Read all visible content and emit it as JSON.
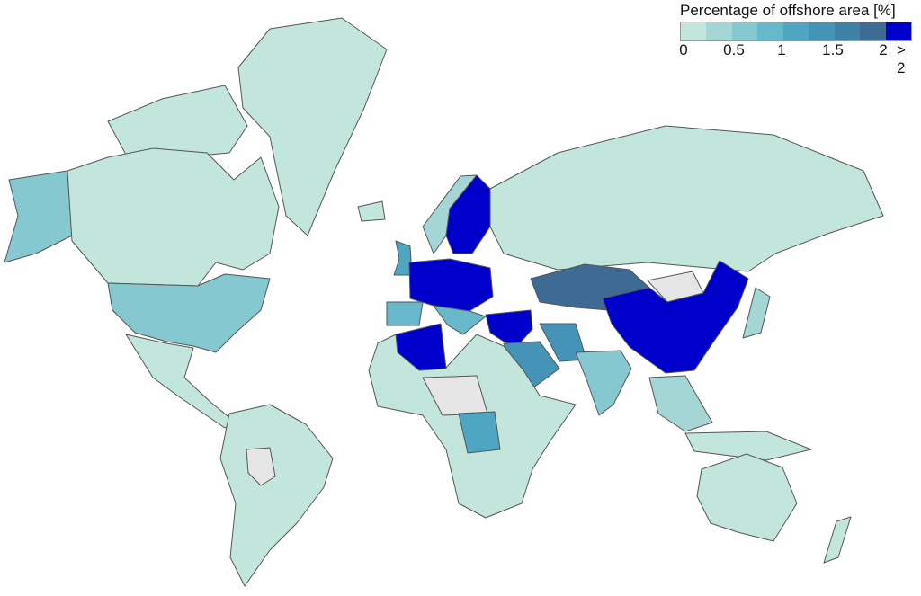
{
  "legend": {
    "title": "Percentage of offshore area [%]",
    "bins": [
      {
        "range": [
          0,
          0.25
        ],
        "color": "#c3e6dc"
      },
      {
        "range": [
          0.25,
          0.5
        ],
        "color": "#a3d6d4"
      },
      {
        "range": [
          0.5,
          0.75
        ],
        "color": "#86c8cf"
      },
      {
        "range": [
          0.75,
          1.0
        ],
        "color": "#67b8ca"
      },
      {
        "range": [
          1.0,
          1.25
        ],
        "color": "#4fa6c2"
      },
      {
        "range": [
          1.25,
          1.5
        ],
        "color": "#4593b7"
      },
      {
        "range": [
          1.5,
          1.75
        ],
        "color": "#3f80a7"
      },
      {
        "range": [
          1.75,
          2.0
        ],
        "color": "#3e6b93"
      },
      {
        "range": [
          2.0,
          null
        ],
        "color": "#0000cc"
      }
    ],
    "ticks": [
      "0",
      "0.5",
      "1",
      "1.5",
      "2",
      "> 2"
    ],
    "no_data_color": "#e6e6e6",
    "border_color": "#555555"
  },
  "regions": {
    "greenland": 0,
    "canada": 0,
    "arctic-islands": 0,
    "alaska": 2,
    "usa": 2,
    "mexico-central-america": 0,
    "south-america": 0,
    "bolivia-paraguay": null,
    "iceland": 0,
    "uk": 4,
    "norway": 1,
    "sweden-finland": 8,
    "western-central-europe": 8,
    "iberia": 3,
    "italy-balkans": 3,
    "russia": 0,
    "kazakhstan": 7,
    "mongolia": null,
    "china": 8,
    "turkey-levant": 8,
    "iran": 5,
    "saudi-arabia": 5,
    "india": 2,
    "africa": 0,
    "algeria": 8,
    "sahel": null,
    "congo": 4,
    "southeast-asia": 1,
    "indonesia": 0,
    "australia": 0,
    "new-zealand": 0,
    "japan": 1
  }
}
